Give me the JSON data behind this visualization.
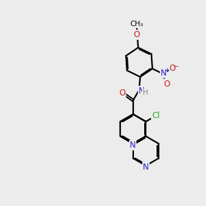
{
  "bg_color": "#ececec",
  "atom_colors": {
    "N": "#2020cc",
    "O": "#cc2020",
    "Cl": "#22aa22",
    "C": "#000000"
  },
  "bond_width": 1.6,
  "font_size": 8.5,
  "font_size_small": 7.5
}
